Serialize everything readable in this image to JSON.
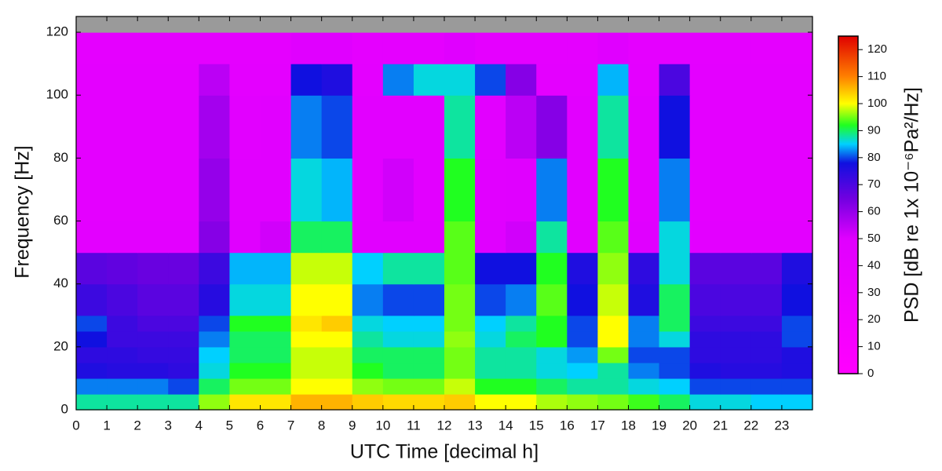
{
  "chart_data": {
    "type": "heatmap",
    "xlabel": "UTC Time [decimal h]",
    "ylabel": "Frequency [Hz]",
    "colorbar_label": "PSD [dB re 1x 10⁻⁶Pa²/Hz]",
    "x_bins": [
      0,
      1,
      2,
      3,
      4,
      5,
      6,
      7,
      8,
      9,
      10,
      11,
      12,
      13,
      14,
      15,
      16,
      17,
      18,
      19,
      20,
      21,
      22,
      23,
      24
    ],
    "y_bins": [
      0,
      5,
      10,
      15,
      20,
      25,
      30,
      40,
      50,
      60,
      80,
      100,
      110,
      120,
      125
    ],
    "values": [
      [
        88,
        88,
        88,
        88,
        96,
        102,
        102,
        106,
        106,
        104,
        103,
        103,
        104,
        100,
        100,
        97,
        96,
        95,
        93,
        90,
        86,
        86,
        85,
        85
      ],
      [
        82,
        82,
        82,
        80,
        90,
        95,
        95,
        100,
        100,
        96,
        95,
        95,
        98,
        92,
        92,
        90,
        88,
        88,
        86,
        85,
        80,
        80,
        80,
        80
      ],
      [
        76,
        75,
        75,
        74,
        86,
        92,
        92,
        98,
        98,
        92,
        90,
        90,
        95,
        88,
        88,
        86,
        85,
        88,
        82,
        80,
        76,
        75,
        75,
        76
      ],
      [
        74,
        74,
        73,
        73,
        85,
        90,
        90,
        98,
        98,
        90,
        90,
        90,
        95,
        88,
        88,
        86,
        83,
        95,
        80,
        80,
        74,
        74,
        74,
        76
      ],
      [
        78,
        72,
        72,
        72,
        82,
        90,
        90,
        100,
        100,
        88,
        86,
        86,
        96,
        86,
        90,
        92,
        80,
        100,
        82,
        86,
        74,
        74,
        74,
        80
      ],
      [
        80,
        72,
        70,
        70,
        80,
        92,
        92,
        102,
        104,
        86,
        85,
        85,
        95,
        85,
        88,
        92,
        80,
        100,
        82,
        90,
        72,
        72,
        72,
        80
      ],
      [
        72,
        70,
        68,
        68,
        75,
        86,
        86,
        100,
        100,
        82,
        80,
        80,
        95,
        80,
        82,
        94,
        78,
        98,
        76,
        90,
        70,
        70,
        70,
        78
      ],
      [
        68,
        67,
        66,
        66,
        72,
        84,
        84,
        98,
        98,
        85,
        88,
        88,
        94,
        78,
        78,
        92,
        76,
        96,
        74,
        86,
        68,
        68,
        68,
        76
      ],
      [
        45,
        45,
        45,
        45,
        62,
        50,
        52,
        90,
        90,
        48,
        48,
        48,
        94,
        50,
        52,
        88,
        48,
        94,
        50,
        86,
        45,
        45,
        45,
        45
      ],
      [
        44,
        44,
        44,
        44,
        60,
        48,
        48,
        86,
        84,
        46,
        52,
        46,
        92,
        48,
        50,
        82,
        46,
        92,
        46,
        82,
        44,
        44,
        44,
        44
      ],
      [
        44,
        44,
        44,
        44,
        58,
        46,
        48,
        82,
        80,
        46,
        46,
        46,
        88,
        46,
        55,
        62,
        46,
        88,
        46,
        78,
        44,
        44,
        44,
        44
      ],
      [
        44,
        44,
        44,
        44,
        55,
        44,
        44,
        78,
        76,
        44,
        82,
        86,
        86,
        80,
        62,
        44,
        44,
        84,
        44,
        70,
        44,
        44,
        44,
        44
      ],
      [
        42,
        42,
        42,
        42,
        42,
        42,
        42,
        50,
        50,
        42,
        42,
        42,
        50,
        42,
        42,
        42,
        42,
        50,
        42,
        42,
        42,
        42,
        42,
        42
      ],
      [
        null,
        null,
        null,
        null,
        null,
        null,
        null,
        null,
        null,
        null,
        null,
        null,
        null,
        null,
        null,
        null,
        null,
        null,
        null,
        null,
        null,
        null,
        null,
        null
      ]
    ],
    "null_color": "#9a9a9a",
    "colorscale": [
      [
        0,
        "#ff00ff"
      ],
      [
        50,
        "#e000ff"
      ],
      [
        65,
        "#7000e0"
      ],
      [
        78,
        "#1010e0"
      ],
      [
        85,
        "#00d0ff"
      ],
      [
        92,
        "#20ff20"
      ],
      [
        100,
        "#ffff00"
      ],
      [
        110,
        "#ff8000"
      ],
      [
        125,
        "#e00000"
      ]
    ],
    "xlim": [
      0,
      24
    ],
    "xticks": [
      0,
      1,
      2,
      3,
      4,
      5,
      6,
      7,
      8,
      9,
      10,
      11,
      12,
      13,
      14,
      15,
      16,
      17,
      18,
      19,
      20,
      21,
      22,
      23
    ],
    "ylim": [
      0,
      125
    ],
    "yticks": [
      0,
      20,
      40,
      60,
      80,
      100,
      120
    ],
    "clim": [
      0,
      125
    ],
    "cticks": [
      0,
      10,
      20,
      30,
      40,
      50,
      60,
      70,
      80,
      90,
      100,
      110,
      120
    ]
  }
}
